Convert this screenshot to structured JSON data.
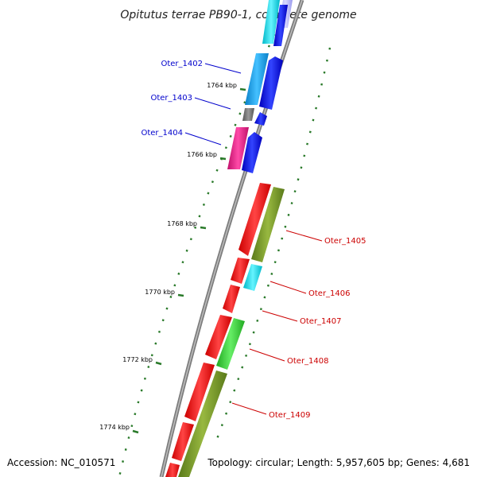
{
  "title": "Opitutus terrae PB90-1, complete genome",
  "footer": {
    "accession": "Accession: NC_010571",
    "summary": "Topology: circular; Length: 5,957,605 bp; Genes: 4,681"
  },
  "ticks": [
    {
      "label": "1764 kbp"
    },
    {
      "label": "1766 kbp"
    },
    {
      "label": "1768 kbp"
    },
    {
      "label": "1770 kbp"
    },
    {
      "label": "1772 kbp"
    },
    {
      "label": "1774 kbp"
    }
  ],
  "gene_labels": [
    {
      "name": "Oter_1402",
      "color": "#0000cc"
    },
    {
      "name": "Oter_1403",
      "color": "#0000cc"
    },
    {
      "name": "Oter_1404",
      "color": "#0000cc"
    },
    {
      "name": "Oter_1405",
      "color": "#cc0000"
    },
    {
      "name": "Oter_1406",
      "color": "#cc0000"
    },
    {
      "name": "Oter_1407",
      "color": "#cc0000"
    },
    {
      "name": "Oter_1408",
      "color": "#cc0000"
    },
    {
      "name": "Oter_1409",
      "color": "#cc0000"
    }
  ],
  "colors": {
    "backbone": "#8a8a8a",
    "forward_cds": "#ff0000",
    "reverse_cds": "#0000ee",
    "tick": "#2a7a2a",
    "cyan": "#00e0e8",
    "light_blue": "#1aa0e0",
    "magenta": "#ee1a8a",
    "olive": "#7a9a2a",
    "green": "#33cc33",
    "gray": "#777777"
  }
}
